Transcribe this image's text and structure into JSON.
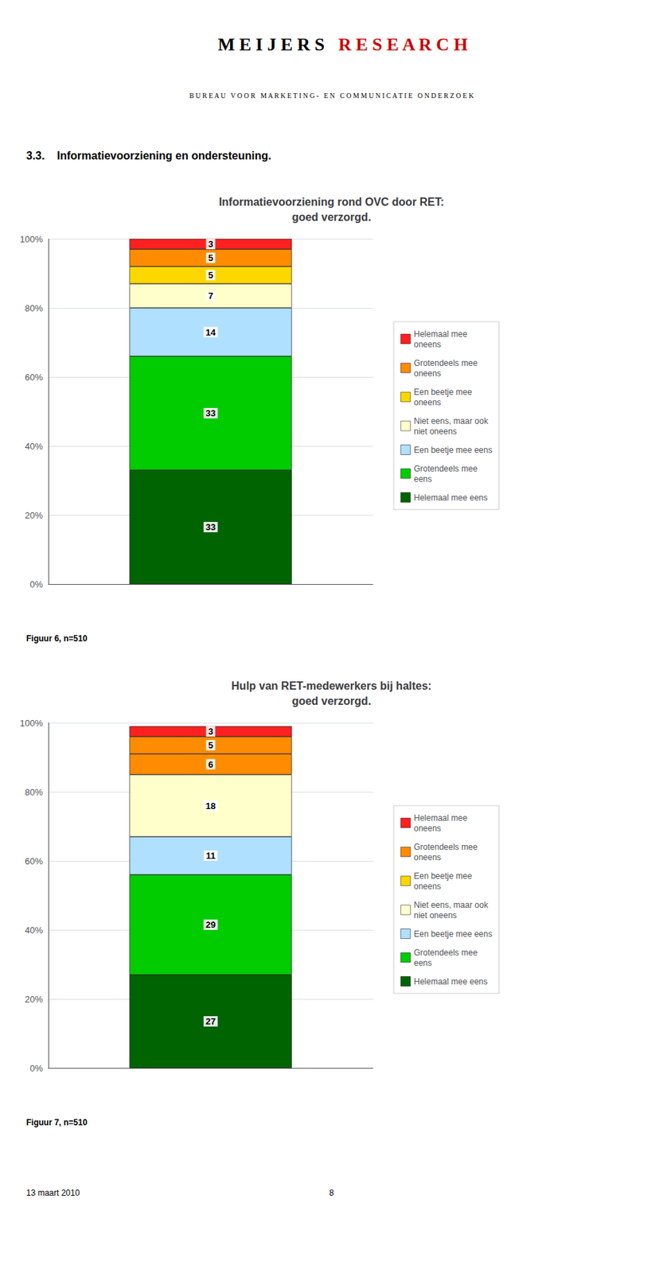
{
  "annotations": [
    "M E I J E R S",
    {
      "text": "R E S E A R C H",
      "color": "#CC0000"
    },
    "B U R E A U   V O O R   M A R K E T I N G -   E N   C O M M U N I C A T I E   O N D E R Z O E K",
    "3.3.    Informatievoorziening en ondersteuning.",
    "13 maart 2010",
    "8"
  ],
  "chart_data": [
    {
      "type": "bar",
      "title": "Informatievoorziening rond OVC door RET:\ngoed verzorgd.",
      "categories": [
        null
      ],
      "series": [
        {
          "name": "Helemaal mee eens",
          "color": "#006400",
          "values": [
            33
          ]
        },
        {
          "name": "Grotendeels mee\neens",
          "color": "#00CC00",
          "values": [
            33
          ]
        },
        {
          "name": "Een beetje mee eens",
          "color": "#B0E0FF",
          "values": [
            14
          ]
        },
        {
          "name": "Niet eens, maar ook\nniet oneens",
          "color": "#FFFFCC",
          "values": [
            7
          ]
        },
        {
          "name": "Een beetje mee\noneens",
          "color": "#FFD700",
          "values": [
            5
          ]
        },
        {
          "name": "Grotendeels mee\noneens",
          "color": "#FF8C00",
          "values": [
            5
          ]
        },
        {
          "name": "Helemaal mee\noneens",
          "color": "#FF2020",
          "values": [
            3
          ]
        }
      ],
      "ylim": [
        0,
        100
      ],
      "yticks": [
        {
          "value": 0,
          "label": "0%"
        },
        {
          "value": 20,
          "label": "20%"
        },
        {
          "value": 40,
          "label": "40%"
        },
        {
          "value": 60,
          "label": "60%"
        },
        {
          "value": 80,
          "label": "80%"
        },
        {
          "value": 100,
          "label": "100%"
        }
      ],
      "grid": true,
      "stacked": true,
      "data_labels": true,
      "tick_labels": "y",
      "legend": "right",
      "annotations": [
        "Figuur 6, n=510"
      ]
    },
    {
      "type": "bar",
      "title": "Hulp van RET-medewerkers bij haltes:\ngoed verzorgd.",
      "categories": [
        null
      ],
      "series": [
        {
          "name": "Helemaal mee eens",
          "color": "#006400",
          "values": [
            27
          ]
        },
        {
          "name": "Grotendeels mee\neens",
          "color": "#00CC00",
          "values": [
            29
          ]
        },
        {
          "name": "Een beetje mee eens",
          "color": "#B0E0FF",
          "values": [
            11
          ]
        },
        {
          "name": "Niet eens, maar ook\nniet oneens",
          "color": "#FFFFCC",
          "values": [
            18
          ]
        },
        {
          "name": "Een beetje mee\noneens",
          "color": "#FF8C00",
          "values": [
            6
          ]
        },
        {
          "name": "Grotendeels mee\noneens",
          "color": "#FF8C00",
          "values": [
            5
          ]
        },
        {
          "name": "Helemaal mee\noneens",
          "color": "#FF2020",
          "values": [
            3
          ]
        }
      ],
      "ylim": [
        0,
        100
      ],
      "yticks": [
        {
          "value": 0,
          "label": "0%"
        },
        {
          "value": 20,
          "label": "20%"
        },
        {
          "value": 40,
          "label": "40%"
        },
        {
          "value": 60,
          "label": "60%"
        },
        {
          "value": 80,
          "label": "80%"
        },
        {
          "value": 100,
          "label": "100%"
        }
      ],
      "grid": true,
      "stacked": true,
      "data_labels": true,
      "tick_labels": "y",
      "legend": "right",
      "annotations": [
        "Figuur 7, n=510"
      ]
    }
  ]
}
